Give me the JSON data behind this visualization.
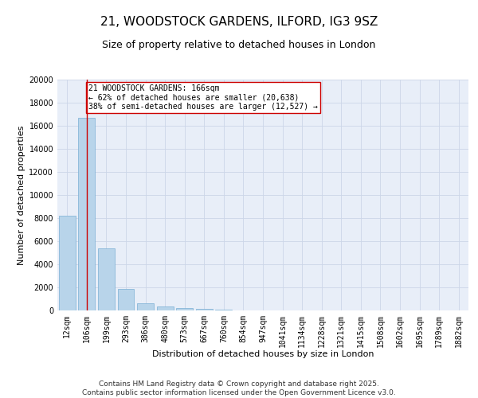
{
  "title_line1": "21, WOODSTOCK GARDENS, ILFORD, IG3 9SZ",
  "title_line2": "Size of property relative to detached houses in London",
  "xlabel": "Distribution of detached houses by size in London",
  "ylabel": "Number of detached properties",
  "bar_color": "#b8d4ea",
  "bar_edge_color": "#7aafd4",
  "categories": [
    "12sqm",
    "106sqm",
    "199sqm",
    "293sqm",
    "386sqm",
    "480sqm",
    "573sqm",
    "667sqm",
    "760sqm",
    "854sqm",
    "947sqm",
    "1041sqm",
    "1134sqm",
    "1228sqm",
    "1321sqm",
    "1415sqm",
    "1508sqm",
    "1602sqm",
    "1695sqm",
    "1789sqm",
    "1882sqm"
  ],
  "values": [
    8200,
    16700,
    5400,
    1850,
    650,
    330,
    210,
    150,
    100,
    0,
    0,
    0,
    0,
    0,
    0,
    0,
    0,
    0,
    0,
    0,
    0
  ],
  "ylim": [
    0,
    20000
  ],
  "yticks": [
    0,
    2000,
    4000,
    6000,
    8000,
    10000,
    12000,
    14000,
    16000,
    18000,
    20000
  ],
  "property_bin_index": 1,
  "vline_color": "#cc0000",
  "annotation_text": "21 WOODSTOCK GARDENS: 166sqm\n← 62% of detached houses are smaller (20,638)\n38% of semi-detached houses are larger (12,527) →",
  "annotation_box_color": "#ffffff",
  "annotation_box_edge": "#cc0000",
  "grid_color": "#ccd6e8",
  "background_color": "#e8eef8",
  "footer_text": "Contains HM Land Registry data © Crown copyright and database right 2025.\nContains public sector information licensed under the Open Government Licence v3.0.",
  "title_fontsize": 11,
  "subtitle_fontsize": 9,
  "axis_label_fontsize": 8,
  "tick_fontsize": 7,
  "annotation_fontsize": 7,
  "footer_fontsize": 6.5
}
